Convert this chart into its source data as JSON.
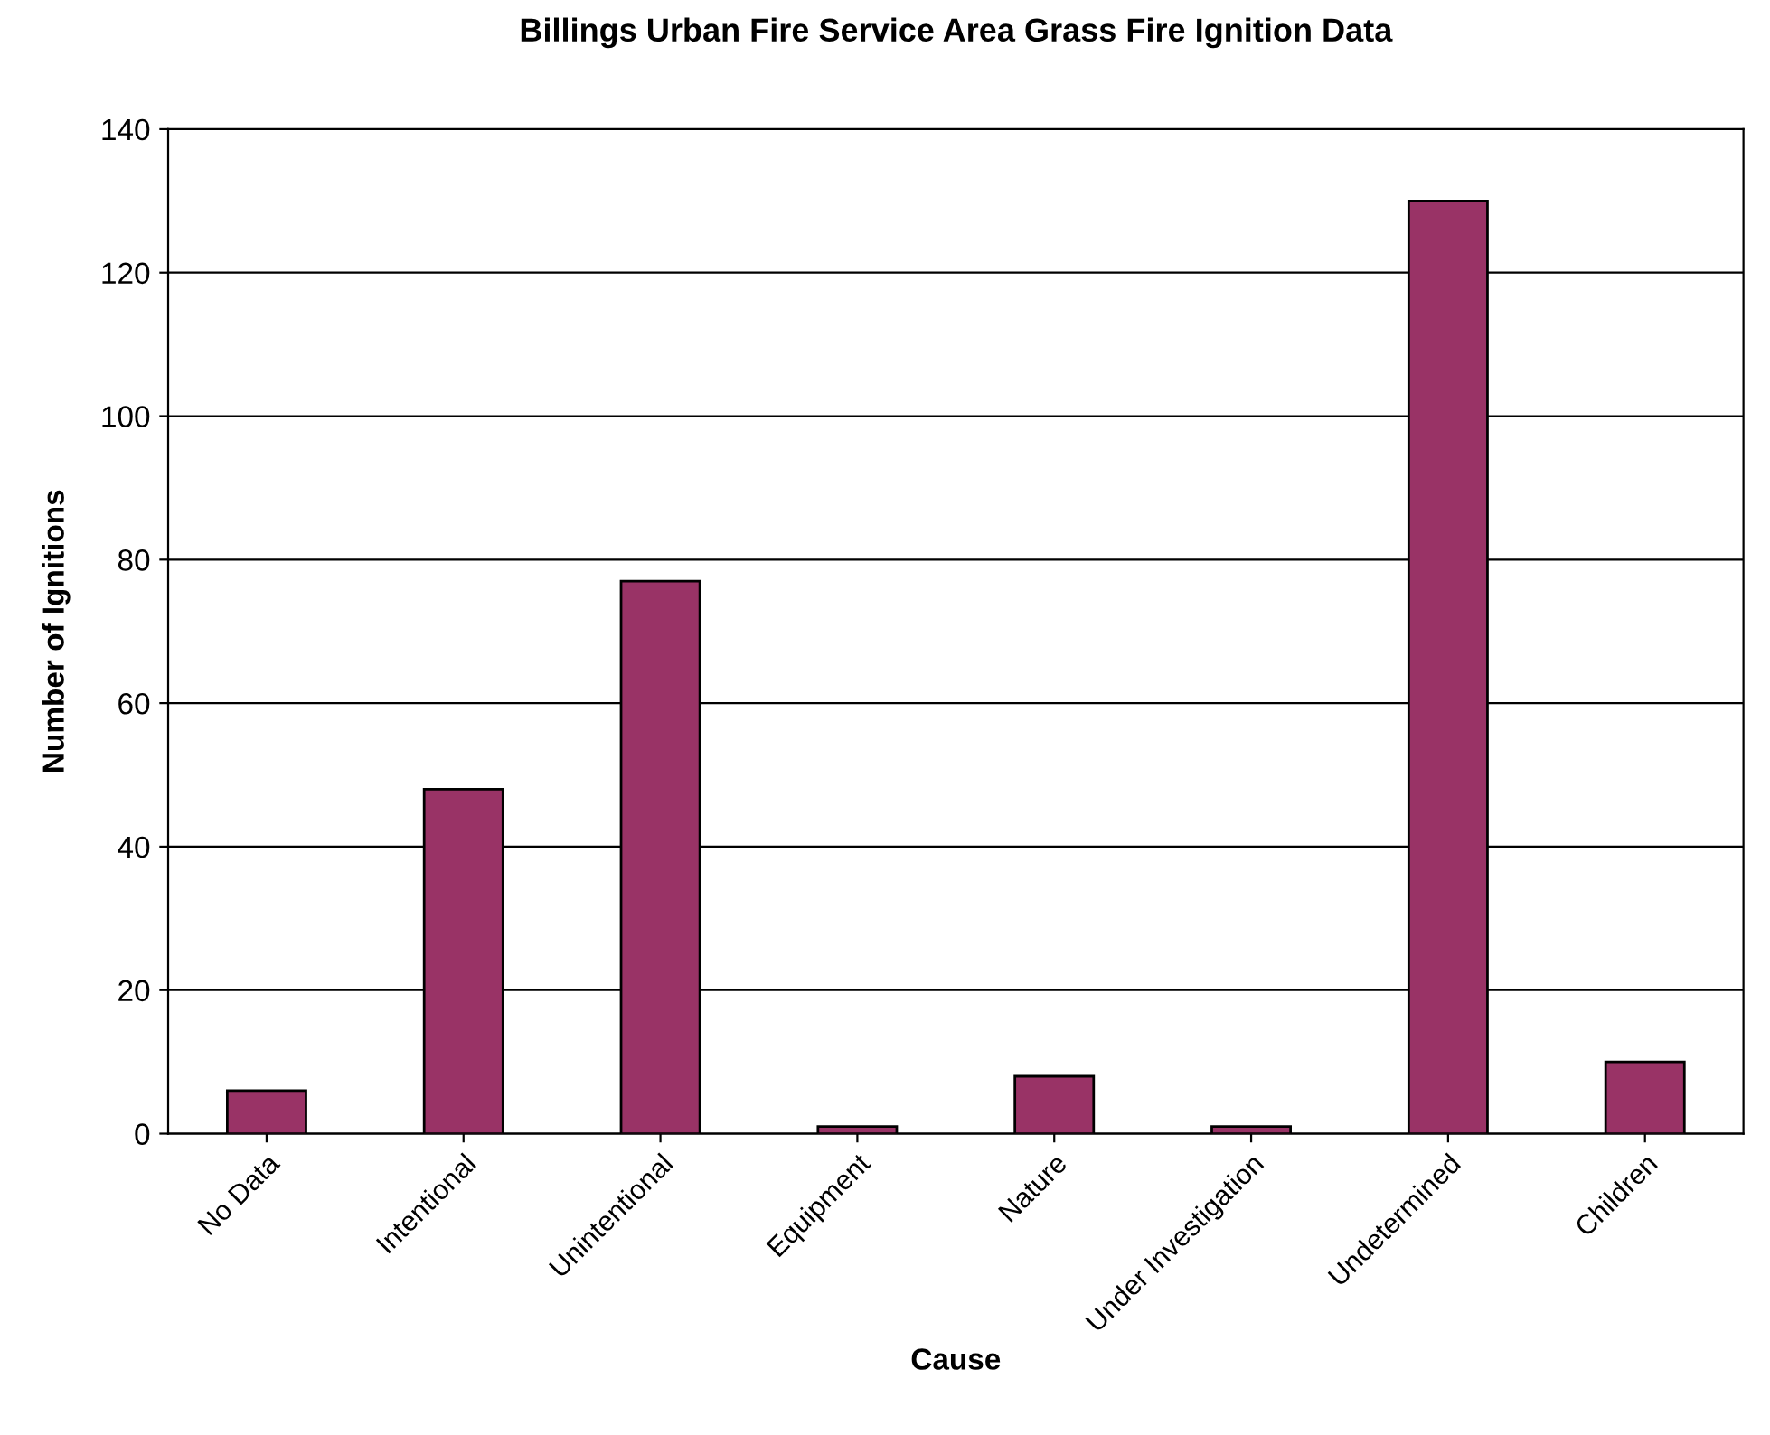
{
  "chart_data": {
    "type": "bar",
    "title": "Billings Urban Fire Service Area Grass Fire Ignition Data",
    "xlabel": "Cause",
    "ylabel": "Number of Ignitions",
    "categories": [
      "No Data",
      "Intentional",
      "Unintentional",
      "Equipment",
      "Nature",
      "Under Investigation",
      "Undetermined",
      "Children"
    ],
    "values": [
      6,
      48,
      77,
      1,
      8,
      1,
      130,
      10
    ],
    "color": "#993366",
    "ylim": [
      0,
      140
    ],
    "yticks": [
      0,
      20,
      40,
      60,
      80,
      100,
      120,
      140
    ],
    "grid": "y",
    "legend": false
  }
}
